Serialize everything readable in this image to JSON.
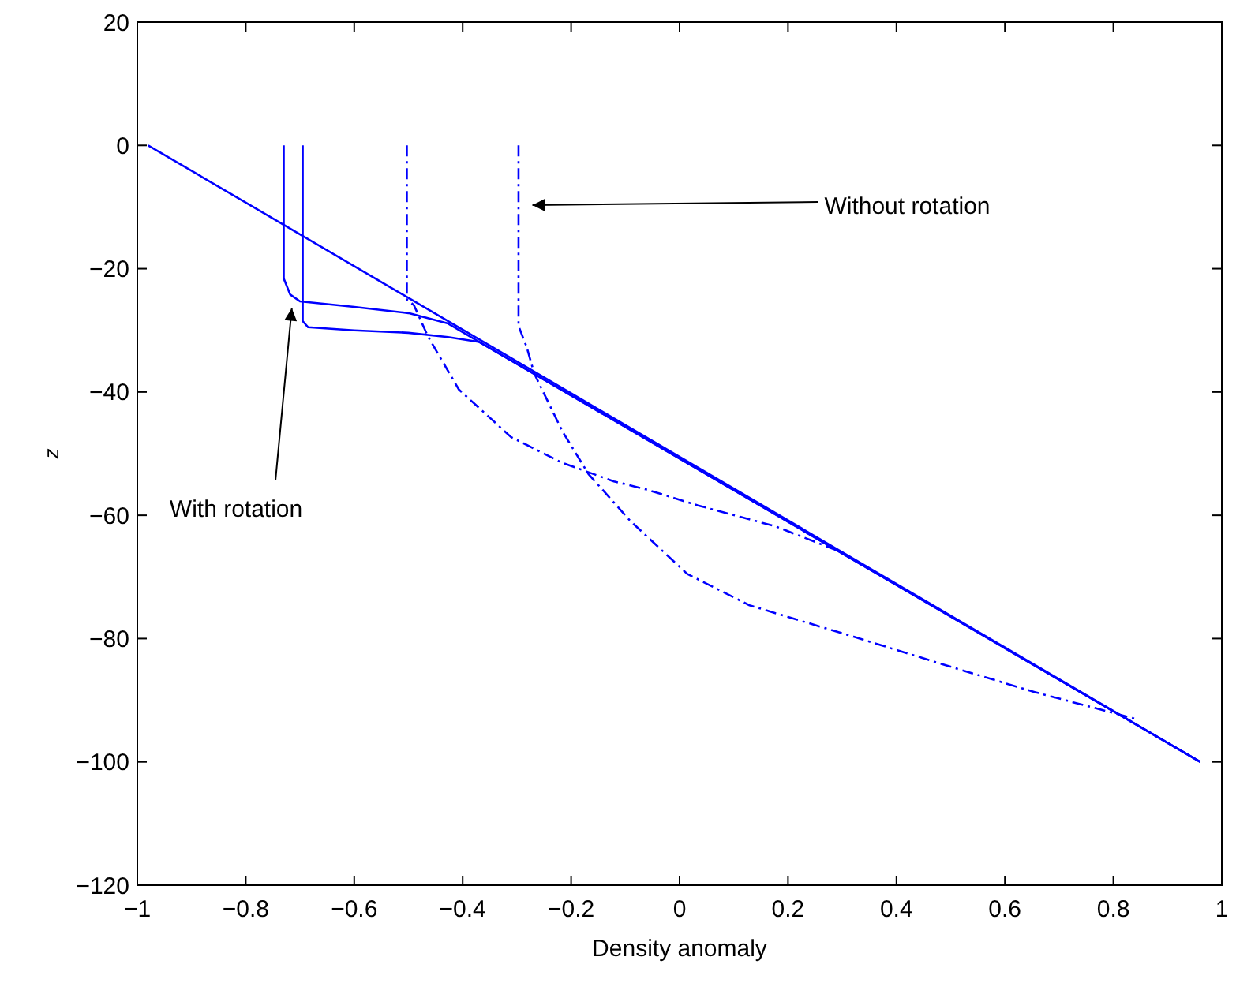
{
  "chart_data": {
    "type": "line",
    "xlabel": "Density anomaly",
    "ylabel": "z",
    "xlim": [
      -1,
      1
    ],
    "ylim": [
      -120,
      20
    ],
    "xticks": [
      {
        "value": -1,
        "label": "−1"
      },
      {
        "value": -0.8,
        "label": "−0.8"
      },
      {
        "value": -0.6,
        "label": "−0.6"
      },
      {
        "value": -0.4,
        "label": "−0.4"
      },
      {
        "value": -0.2,
        "label": "−0.2"
      },
      0,
      0.2,
      0.4,
      0.6,
      0.8,
      1
    ],
    "yticks": [
      {
        "value": -120,
        "label": "−120"
      },
      {
        "value": -100,
        "label": "−100"
      },
      {
        "value": -80,
        "label": "−80"
      },
      {
        "value": -60,
        "label": "−60"
      },
      {
        "value": -40,
        "label": "−40"
      },
      {
        "value": -20,
        "label": "−20"
      },
      0,
      20
    ],
    "grid": false,
    "marker": "none",
    "series": [
      {
        "color": "#0000ff",
        "line_style": "solid",
        "x": [
          -0.98,
          0.96
        ],
        "values": [
          0,
          -100
        ]
      },
      {
        "color": "#0000ff",
        "line_style": "solid",
        "x": [
          -0.73,
          -0.73,
          -0.718,
          -0.7,
          -0.6,
          -0.5,
          -0.427,
          -0.369,
          0.96
        ],
        "values": [
          0,
          -21.6,
          -24.2,
          -25.3,
          -26.2,
          -27.2,
          -28.9,
          -31.9,
          -100
        ]
      },
      {
        "color": "#0000ff",
        "line_style": "solid",
        "x": [
          -0.695,
          -0.695,
          -0.685,
          -0.6,
          -0.5,
          -0.427,
          -0.369,
          0.96
        ],
        "values": [
          0,
          -28.5,
          -29.5,
          -30.0,
          -30.4,
          -31.1,
          -31.9,
          -100
        ]
      },
      {
        "color": "#0000ff",
        "line_style": "dashdot",
        "x": [
          -0.503,
          -0.503,
          -0.49,
          -0.464,
          -0.407,
          -0.311,
          -0.216,
          -0.121,
          -0.062,
          0.034,
          0.177,
          0.302
        ],
        "values": [
          0,
          -25,
          -25.9,
          -31,
          -39.6,
          -47.3,
          -51.5,
          -54.5,
          -55.8,
          -58.4,
          -61.8,
          -66.1
        ]
      },
      {
        "color": "#0000ff",
        "line_style": "dashdot",
        "x": [
          -0.297,
          -0.297,
          -0.282,
          -0.268,
          -0.216,
          -0.168,
          -0.091,
          0.014,
          0.129,
          0.321,
          0.512,
          0.656,
          0.84
        ],
        "values": [
          0,
          -29.3,
          -32.7,
          -37,
          -46.4,
          -53.3,
          -60.9,
          -69.5,
          -74.6,
          -79.7,
          -84.9,
          -88.7,
          -93
        ]
      }
    ],
    "annotations": [
      {
        "text": "Without rotation",
        "x": -0.283,
        "y": -9.7
      },
      {
        "text": "With rotation",
        "x": -0.718,
        "y": -25.9
      }
    ]
  }
}
